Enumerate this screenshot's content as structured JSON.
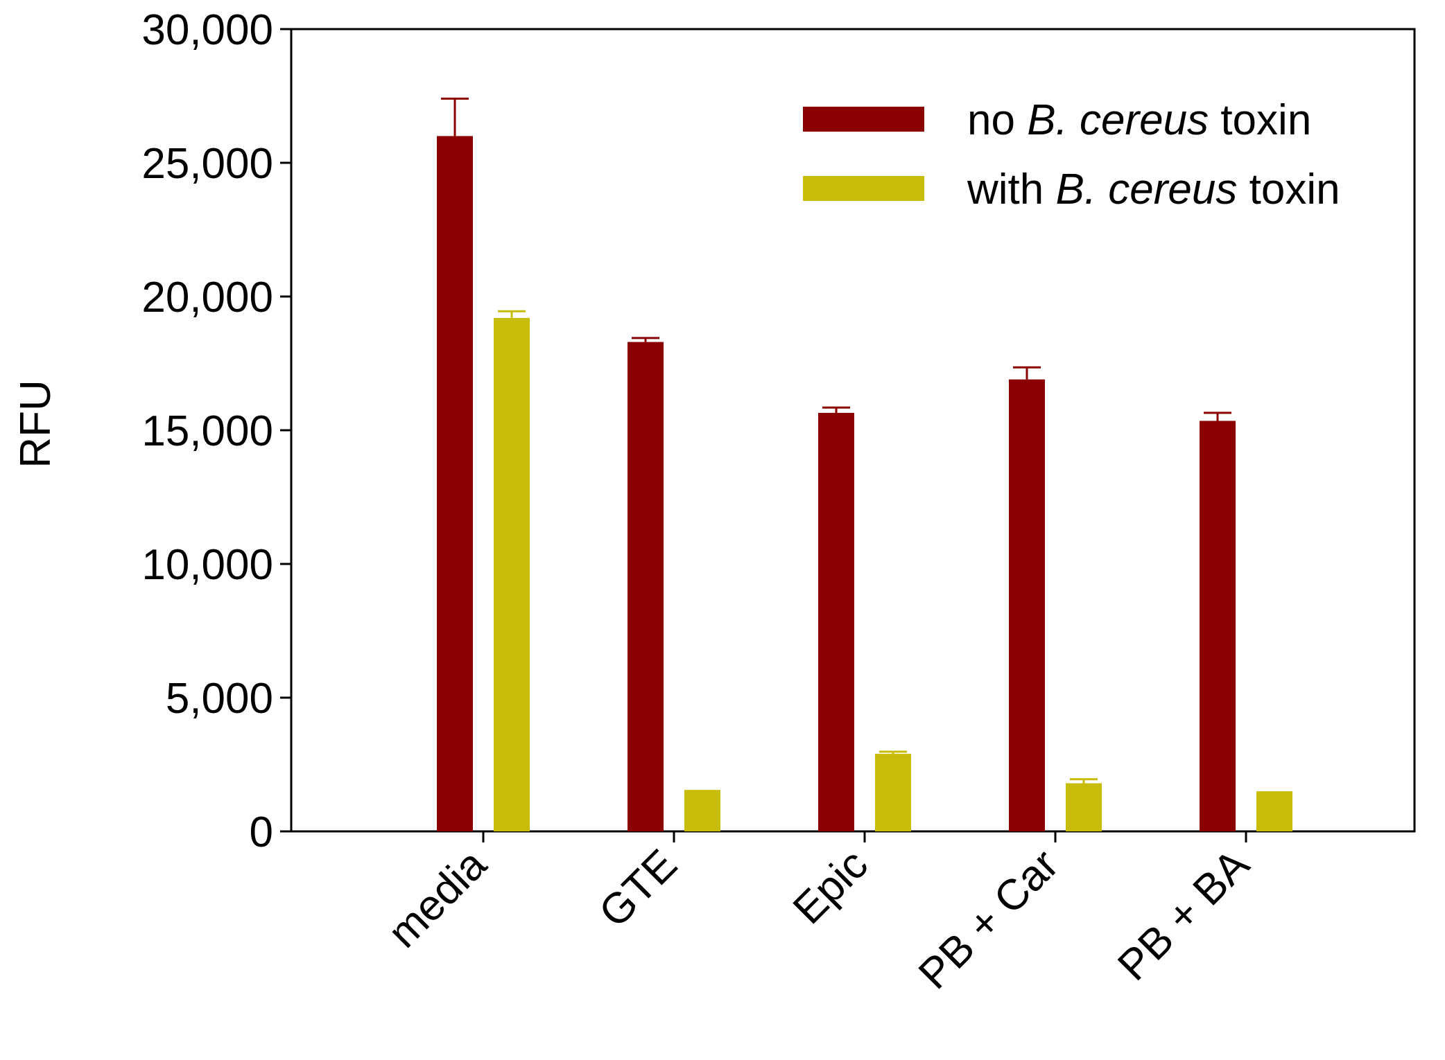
{
  "chart_data": {
    "type": "bar",
    "ylabel": "RFU",
    "ylim": [
      0,
      30000
    ],
    "yticks": [
      0,
      5000,
      10000,
      15000,
      20000,
      25000,
      30000
    ],
    "ytick_labels": [
      "0",
      "5,000",
      "10,000",
      "15,000",
      "20,000",
      "25,000",
      "30,000"
    ],
    "categories": [
      "media",
      "GTE",
      "Epic",
      "PB + Car",
      "PB + BA"
    ],
    "series": [
      {
        "name": "no B. cereus toxin",
        "legend": {
          "pre": "no ",
          "italic": "B. cereus",
          "post": " toxin"
        },
        "color": "#8b0000",
        "values": [
          26000,
          18300,
          15650,
          16900,
          15350
        ],
        "errors": [
          1400,
          150,
          200,
          450,
          300
        ]
      },
      {
        "name": "with B. cereus toxin",
        "legend": {
          "pre": "with ",
          "italic": "B. cereus",
          "post": " toxin"
        },
        "color": "#c8bc0a",
        "values": [
          19200,
          1550,
          2900,
          1800,
          1500
        ],
        "errors": [
          250,
          0,
          80,
          150,
          0
        ]
      }
    ],
    "legend_position": "top-right",
    "grid": false
  }
}
